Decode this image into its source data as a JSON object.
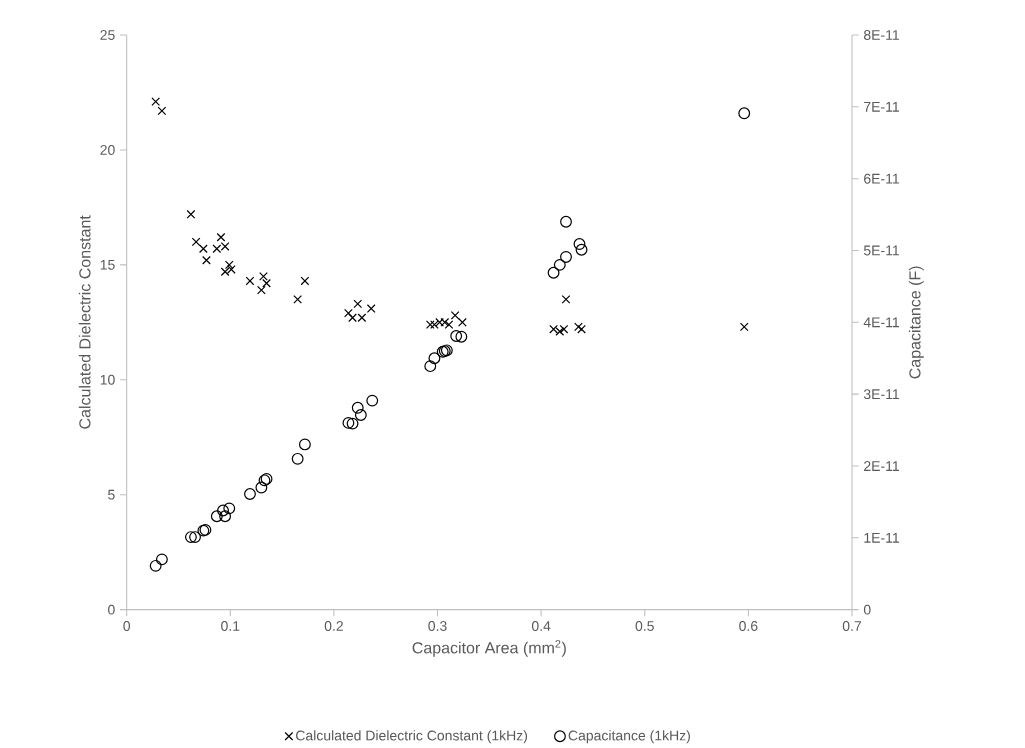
{
  "chart_data": {
    "type": "scatter",
    "xlabel": "Capacitor Area (mm$^{2}$)",
    "ylabel": "Calculated Dielectric Constant",
    "y2label": "Capacitance (F)",
    "xlim": [
      0,
      0.7
    ],
    "xticks": [
      0,
      0.1,
      0.2,
      0.3,
      0.4,
      0.5,
      0.6,
      0.7
    ],
    "ylim": [
      0,
      25
    ],
    "yticks": [
      0,
      5,
      10,
      15,
      20,
      25
    ],
    "y2lim": [
      0,
      8e-11
    ],
    "y2ticks": [
      {
        "value": 0,
        "label": "0"
      },
      {
        "value": 1e-11,
        "label": "1E-11"
      },
      {
        "value": 2e-11,
        "label": "2E-11"
      },
      {
        "value": 3e-11,
        "label": "3E-11"
      },
      {
        "value": 4e-11,
        "label": "4E-11"
      },
      {
        "value": 5e-11,
        "label": "5E-11"
      },
      {
        "value": 6e-11,
        "label": "6E-11"
      },
      {
        "value": 7e-11,
        "label": "7E-11"
      },
      {
        "value": 8e-11,
        "label": "8E-11"
      }
    ],
    "grid": false,
    "legend": "bottom",
    "series": [
      {
        "name": "Calculated Dielectric Constant (1kHz)",
        "color": "#000000",
        "marker": "cross",
        "x": [
          0.028,
          0.034,
          0.062,
          0.067,
          0.074,
          0.077,
          0.087,
          0.091,
          0.095,
          0.095,
          0.099,
          0.101,
          0.119,
          0.13,
          0.132,
          0.135,
          0.165,
          0.172,
          0.214,
          0.218,
          0.223,
          0.227,
          0.236,
          0.293,
          0.297,
          0.302,
          0.307,
          0.311,
          0.317,
          0.324,
          0.412,
          0.418,
          0.422,
          0.424,
          0.436,
          0.439,
          0.596
        ],
        "values": [
          22.1,
          21.7,
          17.2,
          16.0,
          15.7,
          15.2,
          15.7,
          16.2,
          15.8,
          14.7,
          15.0,
          14.8,
          14.3,
          13.9,
          14.5,
          14.2,
          13.5,
          14.3,
          12.9,
          12.7,
          13.3,
          12.7,
          13.1,
          12.4,
          12.4,
          12.5,
          12.5,
          12.4,
          12.8,
          12.5,
          12.2,
          12.1,
          12.2,
          13.5,
          12.3,
          12.2,
          12.3
        ]
      },
      {
        "name": "Capacitance (1kHz)",
        "color": "#000000",
        "marker": "circle",
        "axis": "y2",
        "x": [
          0.028,
          0.034,
          0.062,
          0.066,
          0.074,
          0.076,
          0.087,
          0.093,
          0.095,
          0.099,
          0.119,
          0.13,
          0.133,
          0.135,
          0.165,
          0.172,
          0.214,
          0.218,
          0.223,
          0.226,
          0.237,
          0.293,
          0.297,
          0.305,
          0.307,
          0.309,
          0.318,
          0.323,
          0.412,
          0.418,
          0.424,
          0.424,
          0.437,
          0.439,
          0.596
        ],
        "values": [
          6.1e-12,
          7e-12,
          1.01e-11,
          1.01e-11,
          1.1e-11,
          1.11e-11,
          1.3e-11,
          1.38e-11,
          1.3e-11,
          1.41e-11,
          1.61e-11,
          1.7e-11,
          1.8e-11,
          1.82e-11,
          2.1e-11,
          2.3e-11,
          2.6e-11,
          2.59e-11,
          2.81e-11,
          2.71e-11,
          2.91e-11,
          3.39e-11,
          3.5e-11,
          3.59e-11,
          3.6e-11,
          3.61e-11,
          3.81e-11,
          3.8e-11,
          4.69e-11,
          4.8e-11,
          4.91e-11,
          5.4e-11,
          5.09e-11,
          5.01e-11,
          6.91e-11
        ]
      }
    ]
  }
}
